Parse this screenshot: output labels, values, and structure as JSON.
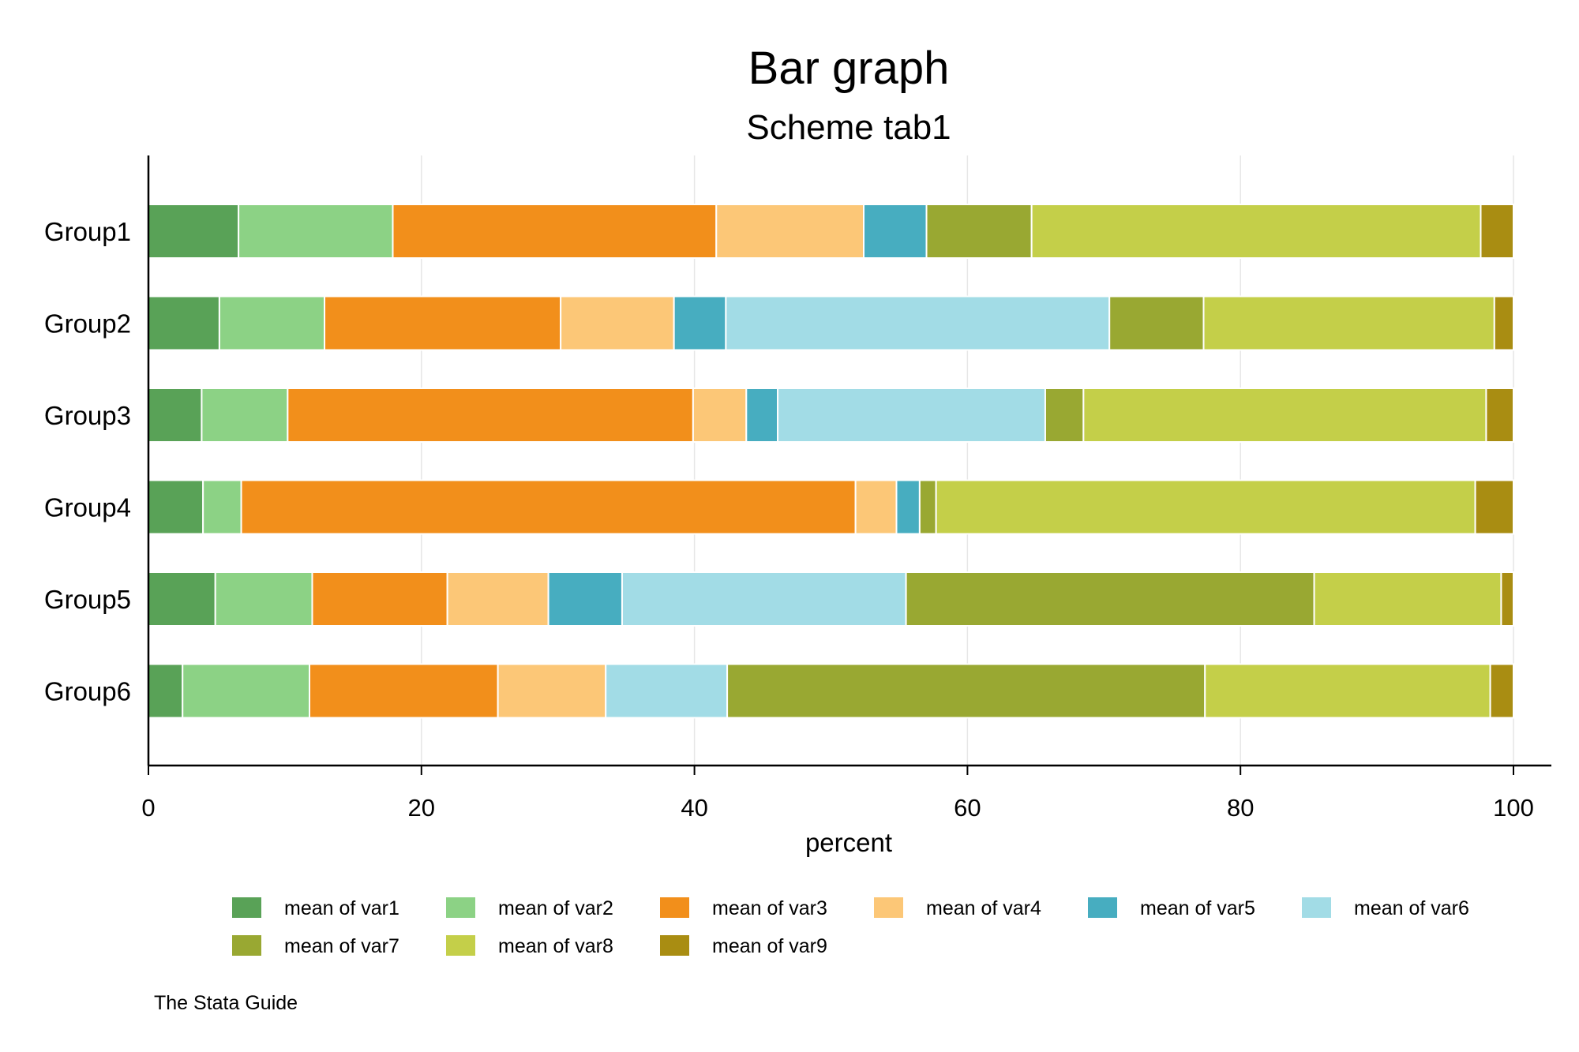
{
  "chart_data": {
    "type": "bar",
    "orientation": "horizontal",
    "stacked": true,
    "title": "Bar graph",
    "subtitle": "Scheme tab1",
    "xlabel": "percent",
    "ylabel": "",
    "xlim": [
      0,
      100
    ],
    "xticks": [
      0,
      20,
      40,
      60,
      80,
      100
    ],
    "grid": true,
    "legend_position": "bottom",
    "note": "The Stata Guide",
    "categories": [
      "Group1",
      "Group2",
      "Group3",
      "Group4",
      "Group5",
      "Group6"
    ],
    "series": [
      {
        "name": "mean of var1",
        "color": "#59A257",
        "values": [
          6.6,
          5.2,
          3.9,
          4.0,
          4.9,
          2.5
        ]
      },
      {
        "name": "mean of var2",
        "color": "#8CD285",
        "values": [
          11.3,
          7.7,
          6.3,
          2.8,
          7.1,
          9.3
        ]
      },
      {
        "name": "mean of var3",
        "color": "#F28F1B",
        "values": [
          23.7,
          17.3,
          29.7,
          45.0,
          9.9,
          13.8
        ]
      },
      {
        "name": "mean of var4",
        "color": "#FCC777",
        "values": [
          10.8,
          8.3,
          3.9,
          3.0,
          7.4,
          7.9
        ]
      },
      {
        "name": "mean of var5",
        "color": "#47ADC0",
        "values": [
          4.6,
          3.8,
          2.3,
          1.7,
          5.4,
          0.0
        ]
      },
      {
        "name": "mean of var6",
        "color": "#A2DCE6",
        "values": [
          0.0,
          28.1,
          19.6,
          0.0,
          20.8,
          8.9
        ]
      },
      {
        "name": "mean of var7",
        "color": "#99A832",
        "values": [
          7.7,
          6.9,
          2.8,
          1.2,
          29.9,
          35.0
        ]
      },
      {
        "name": "mean of var8",
        "color": "#C4CF49",
        "values": [
          32.9,
          21.3,
          29.5,
          39.5,
          13.7,
          20.9
        ]
      },
      {
        "name": "mean of var9",
        "color": "#A98D12",
        "values": [
          2.4,
          1.4,
          2.0,
          2.8,
          0.9,
          1.7
        ]
      }
    ]
  }
}
